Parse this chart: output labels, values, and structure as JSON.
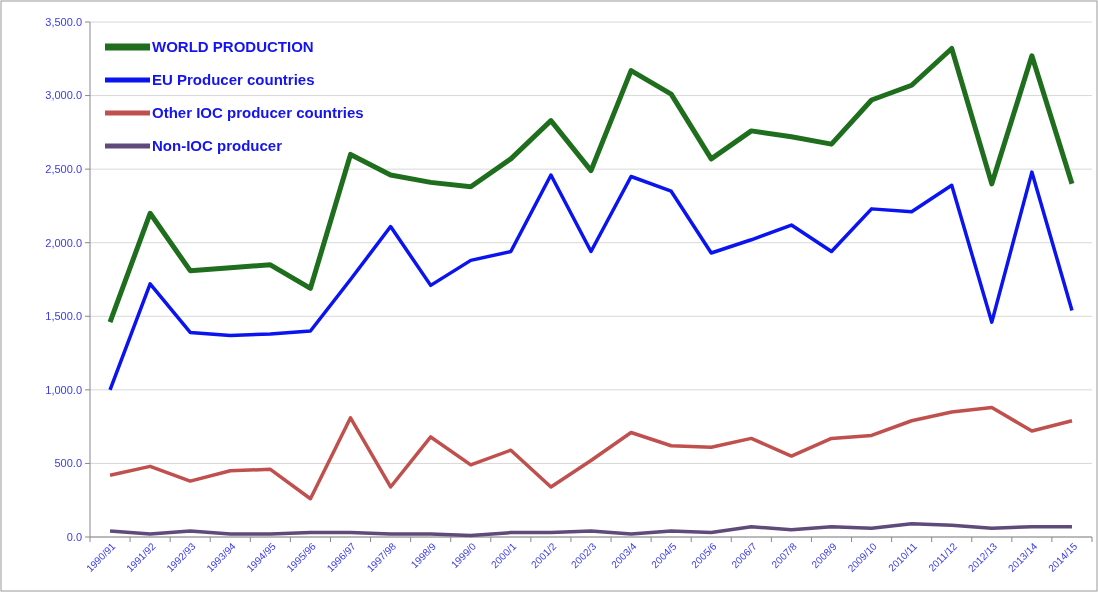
{
  "chart_data": {
    "type": "line",
    "categories": [
      "1990/91",
      "1991/92",
      "1992/93",
      "1993/94",
      "1994/95",
      "1995/96",
      "1996/97",
      "1997/98",
      "1998/9",
      "1999/0",
      "2000/1",
      "2001/2",
      "2002/3",
      "2003/4",
      "2004/5",
      "2005/6",
      "2006/7",
      "2007/8",
      "2008/9",
      "2009/10",
      "2010/11",
      "2011/12",
      "2012/13",
      "2013/14",
      "2014/15"
    ],
    "series": [
      {
        "name": "WORLD PRODUCTION",
        "color": "#1e6e1e",
        "values": [
          1460,
          2200,
          1810,
          1830,
          1850,
          1690,
          2600,
          2460,
          2410,
          2380,
          2570,
          2830,
          2490,
          3170,
          3010,
          2570,
          2760,
          2720,
          2670,
          2970,
          3070,
          3320,
          2400,
          3270,
          2400
        ]
      },
      {
        "name": "EU Producer  countries",
        "color": "#0a14f0",
        "values": [
          1000,
          1720,
          1390,
          1370,
          1380,
          1400,
          1750,
          2110,
          1710,
          1880,
          1940,
          2460,
          1940,
          2450,
          2350,
          1930,
          2020,
          2120,
          1940,
          2230,
          2210,
          2390,
          1460,
          2480,
          1540
        ]
      },
      {
        "name": "Other IOC producer countries",
        "color": "#c0504d",
        "values": [
          420,
          480,
          380,
          450,
          460,
          260,
          810,
          340,
          680,
          490,
          590,
          340,
          520,
          710,
          620,
          610,
          670,
          550,
          670,
          690,
          790,
          850,
          880,
          720,
          790
        ]
      },
      {
        "name": "Non-IOC producer",
        "color": "#5f4a7a",
        "values": [
          40,
          20,
          40,
          20,
          20,
          30,
          30,
          20,
          20,
          10,
          30,
          30,
          40,
          20,
          40,
          30,
          70,
          50,
          70,
          60,
          90,
          80,
          60,
          70,
          70
        ]
      }
    ],
    "ylim": [
      0,
      3500
    ],
    "yticks": [
      {
        "value": 0,
        "label": "0.0"
      },
      {
        "value": 500,
        "label": "500.0"
      },
      {
        "value": 1000,
        "label": "1,000.0"
      },
      {
        "value": 1500,
        "label": "1,500.0"
      },
      {
        "value": 2000,
        "label": "2,000.0"
      },
      {
        "value": 2500,
        "label": "2,500.0"
      },
      {
        "value": 3000,
        "label": "3,000.0"
      },
      {
        "value": 3500,
        "label": "3,500.0"
      }
    ],
    "grid": "y",
    "legend": "top left",
    "marker": "none",
    "line_style": "solid"
  }
}
